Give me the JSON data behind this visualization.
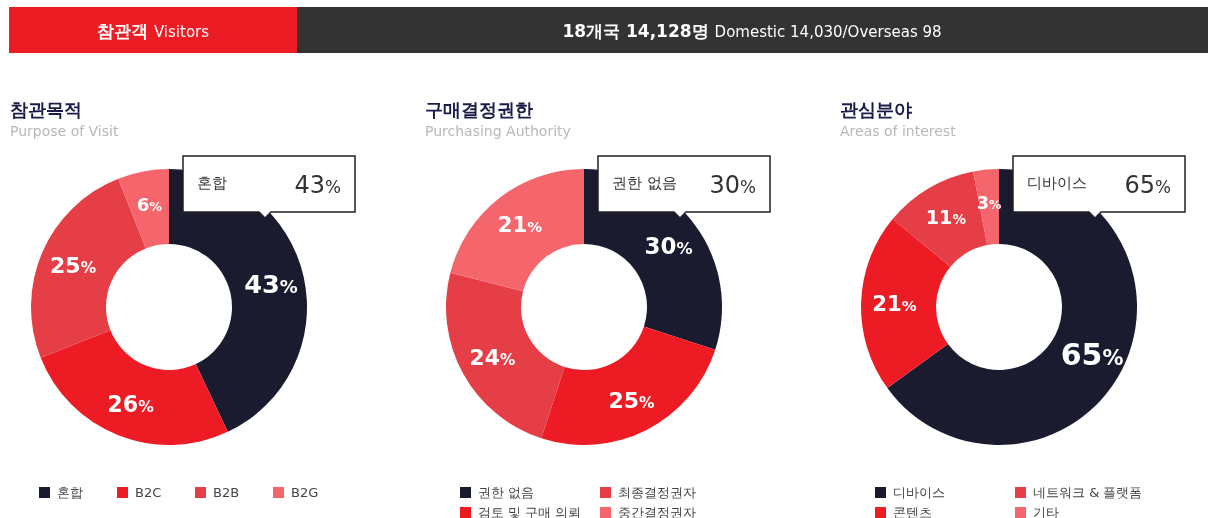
{
  "chart_data": [
    {
      "type": "other",
      "title": "참관객",
      "subtitle": "Visitors",
      "annotations": [
        "18개국 14,128명",
        "Domestic 14,030/Overseas 98"
      ]
    },
    {
      "type": "donut",
      "title": "참관목적",
      "subtitle": "Purpose of Visit",
      "categories": [
        "혼합",
        "B2C",
        "B2B",
        "B2G"
      ],
      "values": [
        43,
        26,
        25,
        6
      ],
      "value_labels": [
        "43%",
        "26%",
        "25%",
        "6%"
      ],
      "colors": [
        "#1b1b2f",
        "#ed1c24",
        "#e63e46",
        "#f4666c"
      ],
      "legend": "bottom"
    },
    {
      "type": "donut",
      "title": "구매결정권한",
      "subtitle": "Purchasing Authority",
      "categories": [
        "권한 없음",
        "검토 및 구매 의뢰",
        "최종결정권자",
        "중간결정권자"
      ],
      "values": [
        30,
        25,
        24,
        21
      ],
      "value_labels": [
        "30%",
        "25%",
        "24%",
        "21%"
      ],
      "colors": [
        "#1b1b2f",
        "#ed1c24",
        "#e63e46",
        "#f4666c"
      ],
      "legend": "bottom"
    },
    {
      "type": "donut",
      "title": "관심분야",
      "subtitle": "Areas of interest",
      "categories": [
        "디바이스",
        "콘텐츠",
        "네트워크 & 플랫폼",
        "기타"
      ],
      "values": [
        65,
        21,
        11,
        3
      ],
      "value_labels": [
        "65%",
        "21%",
        "11%",
        "3%"
      ],
      "colors": [
        "#1b1b2f",
        "#ed1c24",
        "#e63e46",
        "#f4666c"
      ],
      "legend": "bottom"
    }
  ]
}
